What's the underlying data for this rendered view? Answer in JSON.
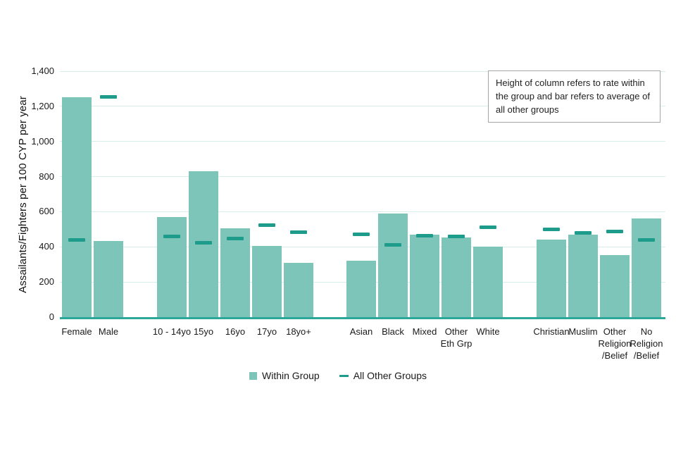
{
  "chart_data": {
    "type": "bar",
    "title": "",
    "ylabel": "Assailants/Fighters per 100 CYP per year",
    "xlabel": "",
    "ylim": [
      0,
      1400
    ],
    "ytick_step": 200,
    "ytick_labels": [
      "0",
      "200",
      "400",
      "600",
      "800",
      "1,000",
      "1,200",
      "1,400"
    ],
    "grid": "horizontal",
    "legend_position": "bottom-center",
    "annotation": "Height of column refers to rate within the group and bar refers to average of all other groups",
    "categories": [
      "Female",
      "Male",
      "10 - 14yo",
      "15yo",
      "16yo",
      "17yo",
      "18yo+",
      "Asian",
      "Black",
      "Mixed",
      "Other\nEth Grp",
      "White",
      "Christian",
      "Muslim",
      "Other\nReligion\n/Belief",
      "No\nReligion\n/Belief"
    ],
    "group_sizes": [
      2,
      5,
      5,
      4
    ],
    "series": [
      {
        "name": "Within Group",
        "style": "column",
        "color": "#7dc5b9",
        "values": [
          1250,
          435,
          570,
          830,
          505,
          405,
          310,
          320,
          590,
          470,
          455,
          400,
          440,
          470,
          355,
          560
        ]
      },
      {
        "name": "All Other Groups",
        "style": "dash",
        "color": "#1d9c8c",
        "values": [
          440,
          1255,
          460,
          425,
          450,
          525,
          485,
          475,
          415,
          465,
          460,
          515,
          500,
          480,
          490,
          440
        ]
      }
    ],
    "colors": {
      "gridline": "#d8eeea",
      "baseline": "#2ba89a",
      "text": "#1a1a1a",
      "annotation_border": "#a6a6a6"
    }
  }
}
